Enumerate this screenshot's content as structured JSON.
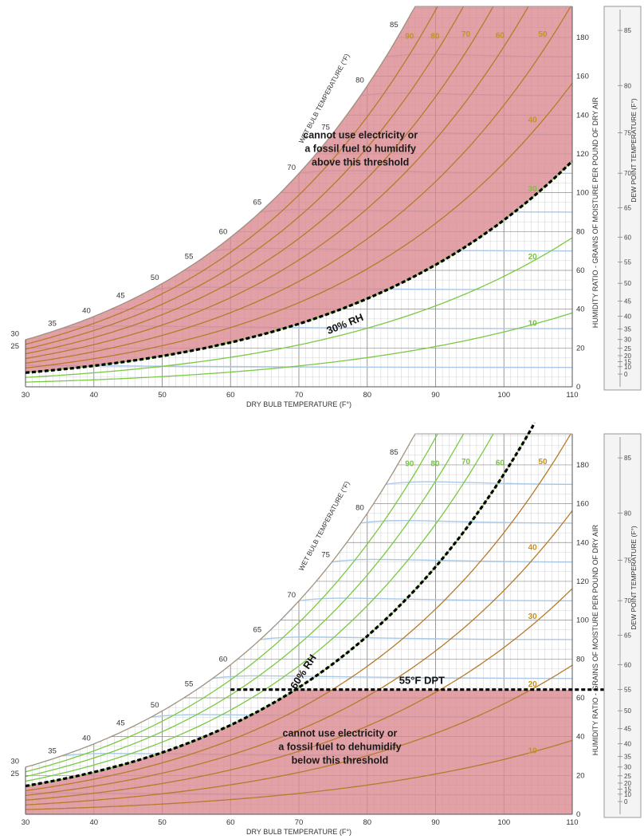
{
  "colors": {
    "zone_fill": "#d9868d",
    "zone_fill_opacity": 0.78,
    "rh_line_in_zone": "#b77a2a",
    "rh_line_outside": "#7ac943",
    "wb_line": "#a9c8e8",
    "grid_major": "#8d8d8d",
    "grid_minor": "#c9c9c9",
    "threshold": "#000000",
    "rh_label_in_zone": "#c5911f",
    "rh_label_outside": "#7cc242",
    "dew_panel_fill": "#f4f4f4"
  },
  "chart_data": [
    {
      "type": "line",
      "chart_kind": "psychrometric",
      "xlabel": "DRY BULB TEMPERATURE (F°)",
      "ylabel": "HUMIDITY RATIO - GRAINS OF MOISTURE PER POUND OF DRY AIR",
      "wb_axis_label": "WET BULB TEMPERATURE (°F)",
      "dp_axis_label": "DEW POINT TEMPERATURE (F°)",
      "xlim": [
        30,
        110
      ],
      "ylim": [
        0,
        196
      ],
      "x_ticks": [
        30,
        40,
        50,
        60,
        70,
        80,
        90,
        100,
        110
      ],
      "y_ticks": [
        0,
        20,
        40,
        60,
        80,
        100,
        120,
        140,
        160,
        180
      ],
      "wb_ticks": [
        25,
        30,
        35,
        40,
        45,
        50,
        55,
        60,
        65,
        70,
        75,
        80,
        85
      ],
      "dp_ticks": [
        0,
        10,
        15,
        20,
        25,
        30,
        35,
        40,
        45,
        50,
        55,
        60,
        65,
        70,
        75,
        80,
        85
      ],
      "rh_curves": [
        10,
        20,
        30,
        40,
        50,
        60,
        70,
        80,
        90,
        100
      ],
      "rh_labels": [
        10,
        20,
        30,
        40,
        50,
        60,
        70,
        80,
        90
      ],
      "threshold": {
        "kind": "rh",
        "value": 30,
        "label": "30% RH"
      },
      "zone": "above",
      "annotation": [
        "cannot use electricity or",
        "a fossil fuel to humidify",
        "above this threshold"
      ]
    },
    {
      "type": "line",
      "chart_kind": "psychrometric",
      "xlabel": "DRY BULB TEMPERATURE (F°)",
      "ylabel": "HUMIDITY RATIO - GRAINS OF MOISTURE PER POUND OF DRY AIR",
      "wb_axis_label": "WET BULB TEMPERATURE (°F)",
      "dp_axis_label": "DEW POINT TEMPERATURE (F°)",
      "xlim": [
        30,
        110
      ],
      "ylim": [
        0,
        196
      ],
      "x_ticks": [
        30,
        40,
        50,
        60,
        70,
        80,
        90,
        100,
        110
      ],
      "y_ticks": [
        0,
        20,
        40,
        60,
        80,
        100,
        120,
        140,
        160,
        180
      ],
      "wb_ticks": [
        25,
        30,
        35,
        40,
        45,
        50,
        55,
        60,
        65,
        70,
        75,
        80,
        85
      ],
      "dp_ticks": [
        0,
        10,
        15,
        20,
        25,
        30,
        35,
        40,
        45,
        50,
        55,
        60,
        65,
        70,
        75,
        80,
        85
      ],
      "rh_curves": [
        10,
        20,
        30,
        40,
        50,
        60,
        70,
        80,
        90,
        100
      ],
      "rh_labels": [
        10,
        20,
        30,
        40,
        50,
        60,
        70,
        80,
        90
      ],
      "threshold": {
        "kind": "rh",
        "value": 60,
        "label": "60% RH"
      },
      "threshold2": {
        "kind": "dewpoint",
        "value": 55,
        "label": "55°F DPT"
      },
      "zone": "below",
      "annotation": [
        "cannot use electricity or",
        "a fossil fuel to dehumidify",
        "below this threshold"
      ]
    }
  ]
}
